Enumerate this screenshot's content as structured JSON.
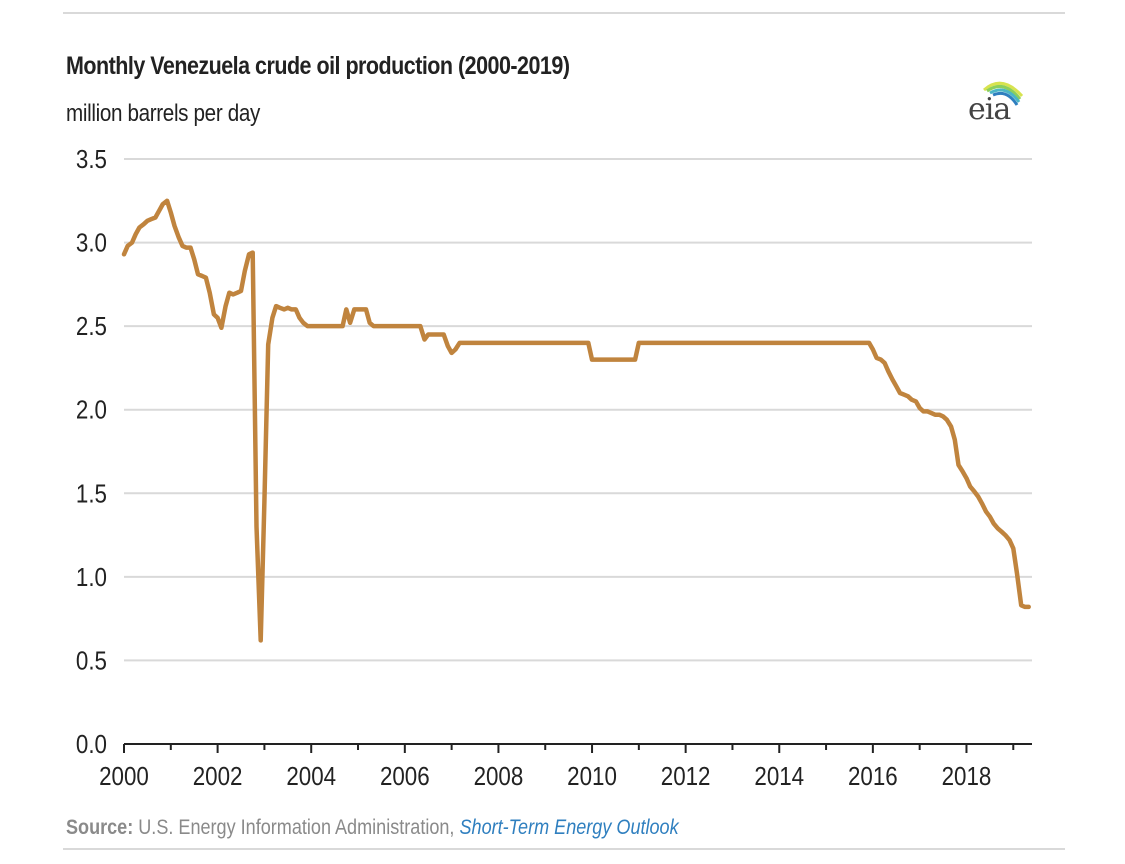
{
  "chart_data": {
    "type": "line",
    "title": "Monthly Venezuela crude oil production (2000-2019)",
    "ylabel": "million barrels per day",
    "xlabel": "",
    "xlim": [
      2000,
      2019.4
    ],
    "ylim": [
      0,
      3.5
    ],
    "y_ticks": [
      "0.0",
      "0.5",
      "1.0",
      "1.5",
      "2.0",
      "2.5",
      "3.0",
      "3.5"
    ],
    "x_ticks": [
      "2000",
      "2002",
      "2004",
      "2006",
      "2008",
      "2010",
      "2012",
      "2014",
      "2016",
      "2018"
    ],
    "grid": true,
    "series": [
      {
        "name": "Venezuela crude oil production",
        "color": "#c0843e",
        "x": [
          2000.0,
          2000.08,
          2000.17,
          2000.25,
          2000.33,
          2000.42,
          2000.5,
          2000.58,
          2000.67,
          2000.75,
          2000.83,
          2000.92,
          2001.0,
          2001.08,
          2001.17,
          2001.25,
          2001.33,
          2001.42,
          2001.5,
          2001.58,
          2001.67,
          2001.75,
          2001.83,
          2001.92,
          2002.0,
          2002.08,
          2002.17,
          2002.25,
          2002.33,
          2002.42,
          2002.5,
          2002.58,
          2002.67,
          2002.75,
          2002.83,
          2002.92,
          2003.0,
          2003.08,
          2003.17,
          2003.25,
          2003.33,
          2003.42,
          2003.5,
          2003.58,
          2003.67,
          2003.75,
          2003.83,
          2003.92,
          2004.0,
          2004.25,
          2004.5,
          2004.67,
          2004.75,
          2004.83,
          2004.92,
          2005.0,
          2005.17,
          2005.25,
          2005.33,
          2005.42,
          2005.5,
          2006.0,
          2006.33,
          2006.42,
          2006.5,
          2006.58,
          2006.83,
          2006.92,
          2007.0,
          2007.08,
          2007.17,
          2007.25,
          2007.5,
          2008.0,
          2009.0,
          2009.92,
          2010.0,
          2010.08,
          2010.5,
          2010.92,
          2011.0,
          2011.08,
          2012.0,
          2013.0,
          2014.0,
          2015.0,
          2015.92,
          2016.0,
          2016.08,
          2016.17,
          2016.25,
          2016.33,
          2016.42,
          2016.5,
          2016.58,
          2016.67,
          2016.75,
          2016.83,
          2016.92,
          2017.0,
          2017.08,
          2017.17,
          2017.25,
          2017.33,
          2017.42,
          2017.5,
          2017.58,
          2017.67,
          2017.75,
          2017.83,
          2017.92,
          2018.0,
          2018.08,
          2018.17,
          2018.25,
          2018.33,
          2018.42,
          2018.5,
          2018.58,
          2018.67,
          2018.75,
          2018.83,
          2018.92,
          2019.0,
          2019.08,
          2019.17,
          2019.25,
          2019.33
        ],
        "values": [
          2.93,
          2.98,
          3.0,
          3.05,
          3.09,
          3.11,
          3.13,
          3.14,
          3.15,
          3.19,
          3.23,
          3.25,
          3.18,
          3.1,
          3.03,
          2.98,
          2.97,
          2.97,
          2.9,
          2.81,
          2.8,
          2.79,
          2.7,
          2.57,
          2.55,
          2.49,
          2.62,
          2.7,
          2.69,
          2.7,
          2.71,
          2.83,
          2.93,
          2.94,
          1.3,
          0.62,
          1.45,
          2.39,
          2.55,
          2.62,
          2.61,
          2.6,
          2.61,
          2.6,
          2.6,
          2.55,
          2.52,
          2.5,
          2.5,
          2.5,
          2.5,
          2.5,
          2.6,
          2.52,
          2.6,
          2.6,
          2.6,
          2.52,
          2.5,
          2.5,
          2.5,
          2.5,
          2.5,
          2.42,
          2.45,
          2.45,
          2.45,
          2.38,
          2.34,
          2.36,
          2.4,
          2.4,
          2.4,
          2.4,
          2.4,
          2.4,
          2.3,
          2.3,
          2.3,
          2.3,
          2.4,
          2.4,
          2.4,
          2.4,
          2.4,
          2.4,
          2.4,
          2.36,
          2.31,
          2.3,
          2.28,
          2.23,
          2.18,
          2.14,
          2.1,
          2.09,
          2.08,
          2.06,
          2.05,
          2.01,
          1.99,
          1.99,
          1.98,
          1.97,
          1.97,
          1.96,
          1.94,
          1.9,
          1.82,
          1.67,
          1.63,
          1.59,
          1.54,
          1.51,
          1.48,
          1.44,
          1.39,
          1.36,
          1.32,
          1.29,
          1.27,
          1.25,
          1.22,
          1.17,
          1.02,
          0.83,
          0.82,
          0.82
        ]
      }
    ]
  },
  "source": {
    "label": "Source:",
    "text": " U.S. Energy Information Administration, ",
    "link": "Short-Term Energy Outlook"
  },
  "logo": {
    "text": "eia"
  }
}
